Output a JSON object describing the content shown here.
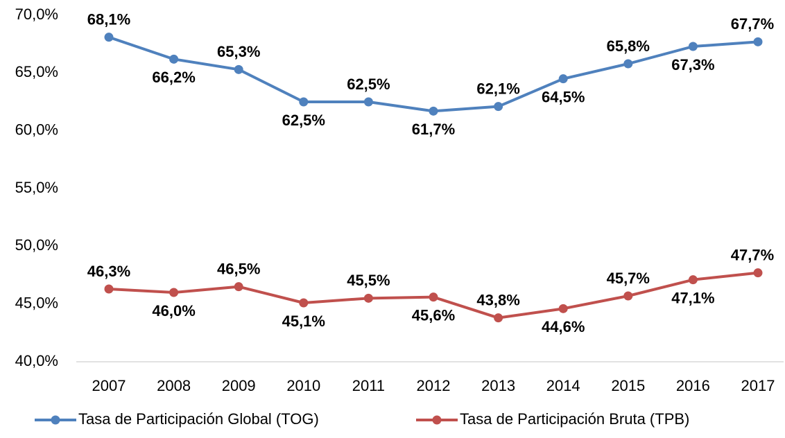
{
  "chart_data": {
    "type": "line",
    "categories": [
      "2007",
      "2008",
      "2009",
      "2010",
      "2011",
      "2012",
      "2013",
      "2014",
      "2015",
      "2016",
      "2017"
    ],
    "series": [
      {
        "name": "Tasa de Participación Global (TOG)",
        "color": "#4f81bd",
        "values": [
          68.1,
          66.2,
          65.3,
          62.5,
          62.5,
          61.7,
          62.1,
          64.5,
          65.8,
          67.3,
          67.7
        ],
        "value_labels": [
          "68,1%",
          "66,2%",
          "65,3%",
          "62,5%",
          "62,5%",
          "61,7%",
          "62,1%",
          "64,5%",
          "65,8%",
          "67,3%",
          "67,7%"
        ]
      },
      {
        "name": "Tasa de Participación Bruta (TPB)",
        "color": "#c0504d",
        "values": [
          46.3,
          46.0,
          46.5,
          45.1,
          45.5,
          45.6,
          43.8,
          44.6,
          45.7,
          47.1,
          47.7
        ],
        "value_labels": [
          "46,3%",
          "46,0%",
          "46,5%",
          "45,1%",
          "45,5%",
          "45,6%",
          "43,8%",
          "44,6%",
          "45,7%",
          "47,1%",
          "47,7%"
        ]
      }
    ],
    "ylim": [
      40,
      70
    ],
    "yticks": [
      {
        "value": 40,
        "label": "40,0%"
      },
      {
        "value": 45,
        "label": "45,0%"
      },
      {
        "value": 50,
        "label": "50,0%"
      },
      {
        "value": 55,
        "label": "55,0%"
      },
      {
        "value": 60,
        "label": "60,0%"
      },
      {
        "value": 65,
        "label": "65,0%"
      },
      {
        "value": 70,
        "label": "70,0%"
      }
    ],
    "grid": false,
    "legend": "bottom"
  }
}
